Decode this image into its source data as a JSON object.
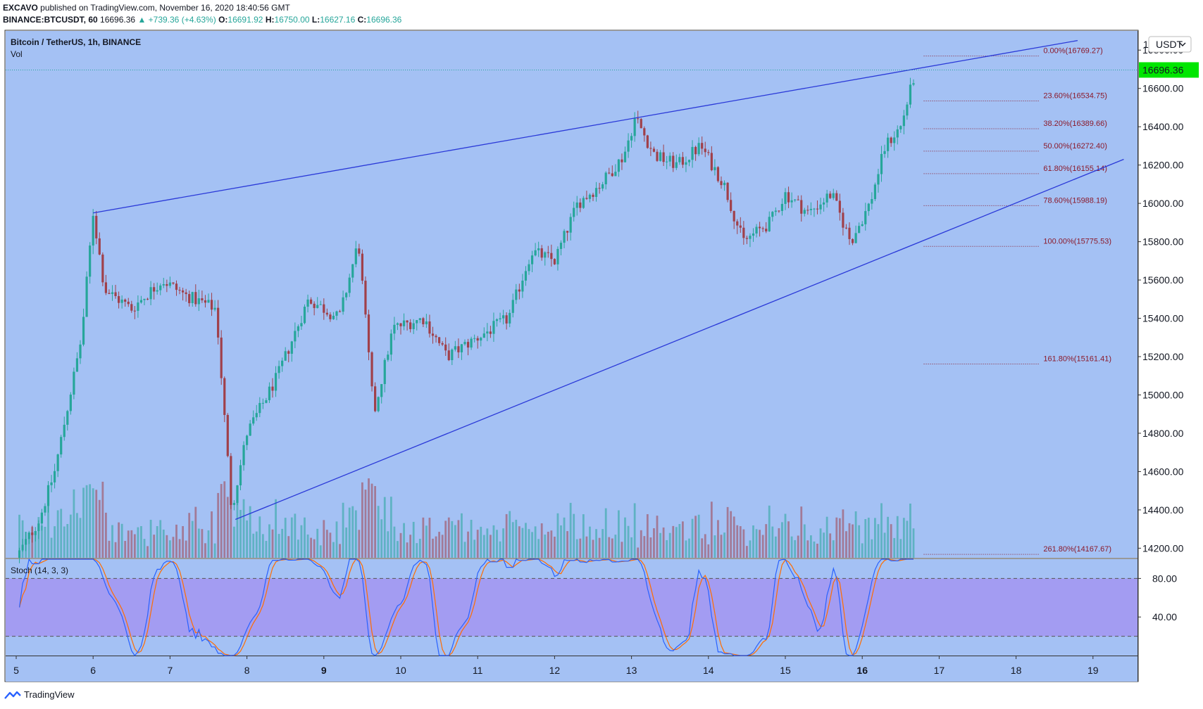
{
  "header": {
    "publisher": "EXCAVO",
    "published_text": "published on TradingView.com, November 16, 2020 18:40:56 GMT",
    "symbol": "BINANCE:BTCUSDT, 60",
    "last": "16696.36",
    "change": "▲ +739.36 (+4.63%)",
    "o_label": "O:",
    "o": "16691.92",
    "h_label": "H:",
    "h": "16750.00",
    "l_label": "L:",
    "l": "16627.16",
    "c_label": "C:",
    "c": "16696.36"
  },
  "legend": {
    "title": "Bitcoin / TetherUS, 1h, BINANCE",
    "vol": "Vol",
    "stoch": "Stoch (14, 3, 3)"
  },
  "price_axis": {
    "currency": "USDT",
    "top_label": "1",
    "current_price": "16696.36",
    "ticks": [
      "16800.00",
      "16600.00",
      "16400.00",
      "16200.00",
      "16000.00",
      "15800.00",
      "15600.00",
      "15400.00",
      "15200.00",
      "15000.00",
      "14800.00",
      "14600.00",
      "14400.00",
      "14200.00"
    ]
  },
  "stoch_axis": {
    "ticks": [
      "80.00",
      "40.00"
    ]
  },
  "time_axis": {
    "ticks": [
      "5",
      "6",
      "7",
      "8",
      "9",
      "10",
      "11",
      "12",
      "13",
      "14",
      "15",
      "16",
      "17",
      "18",
      "19"
    ]
  },
  "fib_levels": [
    {
      "label": "0.00%(16769.27)",
      "price": 16769.27
    },
    {
      "label": "23.60%(16534.75)",
      "price": 16534.75
    },
    {
      "label": "38.20%(16389.66)",
      "price": 16389.66
    },
    {
      "label": "50.00%(16272.40)",
      "price": 16272.4
    },
    {
      "label": "61.80%(16155.14)",
      "price": 16155.14
    },
    {
      "label": "78.60%(15988.19)",
      "price": 15988.19
    },
    {
      "label": "100.00%(15775.53)",
      "price": 15775.53
    },
    {
      "label": "161.80%(15161.41)",
      "price": 15161.41
    },
    {
      "label": "261.80%(14167.67)",
      "price": 14167.67
    }
  ],
  "colors": {
    "background": "#a4c1f4",
    "up": "#26a69a",
    "down": "#a0404a",
    "trendline": "#2a39d8",
    "fib": "#8b1a2b",
    "stoch_band": "#a39cf2",
    "stoch_k": "#2962ff",
    "stoch_d": "#ff6d00",
    "price_tag": "#00e600"
  },
  "footer": {
    "brand": "TradingView"
  },
  "chart_data": {
    "type": "candlestick",
    "symbol": "BTCUSDT",
    "interval": "1h",
    "x_range_days": [
      5,
      19
    ],
    "ylim": [
      14150,
      16900
    ],
    "close_path": [
      {
        "x": 5.0,
        "y": 14150
      },
      {
        "x": 5.3,
        "y": 14350
      },
      {
        "x": 5.5,
        "y": 14600
      },
      {
        "x": 5.7,
        "y": 15000
      },
      {
        "x": 5.85,
        "y": 15300
      },
      {
        "x": 6.0,
        "y": 15950
      },
      {
        "x": 6.15,
        "y": 15550
      },
      {
        "x": 6.5,
        "y": 15450
      },
      {
        "x": 6.9,
        "y": 15600
      },
      {
        "x": 7.2,
        "y": 15520
      },
      {
        "x": 7.6,
        "y": 15450
      },
      {
        "x": 7.8,
        "y": 14400
      },
      {
        "x": 8.0,
        "y": 14800
      },
      {
        "x": 8.4,
        "y": 15100
      },
      {
        "x": 8.8,
        "y": 15500
      },
      {
        "x": 9.2,
        "y": 15400
      },
      {
        "x": 9.45,
        "y": 15800
      },
      {
        "x": 9.65,
        "y": 14900
      },
      {
        "x": 9.9,
        "y": 15350
      },
      {
        "x": 10.3,
        "y": 15400
      },
      {
        "x": 10.6,
        "y": 15200
      },
      {
        "x": 11.0,
        "y": 15300
      },
      {
        "x": 11.4,
        "y": 15400
      },
      {
        "x": 11.7,
        "y": 15750
      },
      {
        "x": 12.0,
        "y": 15700
      },
      {
        "x": 12.3,
        "y": 16000
      },
      {
        "x": 12.6,
        "y": 16100
      },
      {
        "x": 12.9,
        "y": 16250
      },
      {
        "x": 13.05,
        "y": 16450
      },
      {
        "x": 13.3,
        "y": 16250
      },
      {
        "x": 13.6,
        "y": 16200
      },
      {
        "x": 13.9,
        "y": 16300
      },
      {
        "x": 14.2,
        "y": 16100
      },
      {
        "x": 14.45,
        "y": 15800
      },
      {
        "x": 14.8,
        "y": 15900
      },
      {
        "x": 15.0,
        "y": 16050
      },
      {
        "x": 15.3,
        "y": 15950
      },
      {
        "x": 15.6,
        "y": 16050
      },
      {
        "x": 15.85,
        "y": 15800
      },
      {
        "x": 16.1,
        "y": 16000
      },
      {
        "x": 16.3,
        "y": 16300
      },
      {
        "x": 16.5,
        "y": 16400
      },
      {
        "x": 16.7,
        "y": 16700
      }
    ],
    "trendlines": [
      {
        "from": {
          "x": 6.0,
          "y": 15950
        },
        "to": {
          "x": 18.8,
          "y": 16850
        }
      },
      {
        "from": {
          "x": 7.85,
          "y": 14350
        },
        "to": {
          "x": 19.4,
          "y": 16230
        }
      }
    ],
    "stoch_range": [
      0,
      100
    ],
    "stoch_band": [
      20,
      80
    ]
  }
}
